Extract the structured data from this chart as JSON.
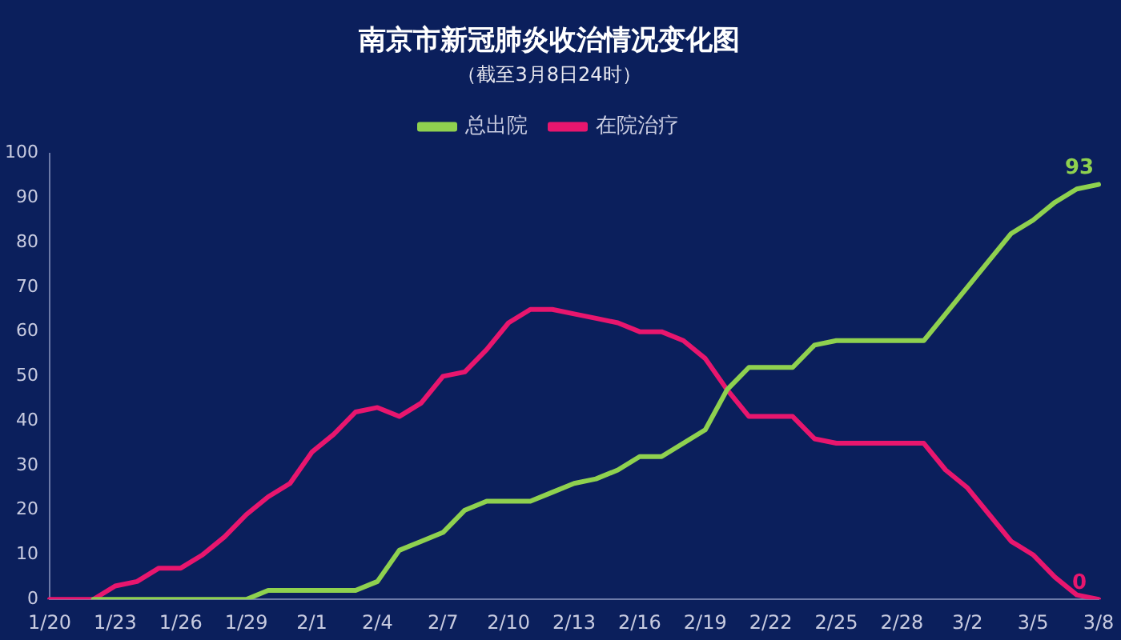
{
  "chart_data": {
    "type": "line",
    "title": "南京市新冠肺炎收治情况变化图",
    "subtitle": "（截至3月8日24时）",
    "categories": [
      "1/20",
      null,
      null,
      "1/23",
      null,
      null,
      "1/26",
      null,
      null,
      "1/29",
      null,
      null,
      "2/1",
      null,
      null,
      "2/4",
      null,
      null,
      "2/7",
      null,
      null,
      "2/10",
      null,
      null,
      "2/13",
      null,
      null,
      "2/16",
      null,
      null,
      "2/19",
      null,
      null,
      "2/22",
      null,
      null,
      "2/25",
      null,
      null,
      "2/28",
      null,
      null,
      "3/2",
      null,
      null,
      "3/5",
      null,
      null,
      "3/8"
    ],
    "series": [
      {
        "name": "总出院",
        "color": "#8fd14f",
        "values": [
          null,
          null,
          0,
          0,
          0,
          0,
          0,
          0,
          0,
          0,
          2,
          2,
          2,
          2,
          2,
          4,
          11,
          13,
          15,
          20,
          22,
          22,
          22,
          24,
          26,
          27,
          29,
          32,
          32,
          35,
          38,
          47,
          52,
          52,
          52,
          57,
          58,
          58,
          58,
          58,
          58,
          64,
          70,
          76,
          82,
          85,
          89,
          92,
          93
        ]
      },
      {
        "name": "在院治疗",
        "color": "#e8166e",
        "values": [
          0,
          0,
          0,
          3,
          4,
          7,
          7,
          10,
          14,
          19,
          23,
          26,
          33,
          37,
          42,
          43,
          41,
          44,
          50,
          51,
          56,
          62,
          65,
          65,
          64,
          63,
          62,
          60,
          60,
          58,
          54,
          47,
          41,
          41,
          41,
          36,
          35,
          35,
          35,
          35,
          35,
          29,
          25,
          19,
          13,
          10,
          5,
          1,
          0
        ]
      }
    ],
    "ylim": [
      0,
      100
    ],
    "yticks": [
      0,
      10,
      20,
      30,
      40,
      50,
      60,
      70,
      80,
      90,
      100
    ],
    "grid": false,
    "legend": "top",
    "marker": "none",
    "line_style": "solid",
    "annotations": [
      {
        "text": "93",
        "x": "3/8",
        "y": 93
      },
      {
        "text": "0",
        "x": "3/8",
        "y": 0
      }
    ]
  }
}
